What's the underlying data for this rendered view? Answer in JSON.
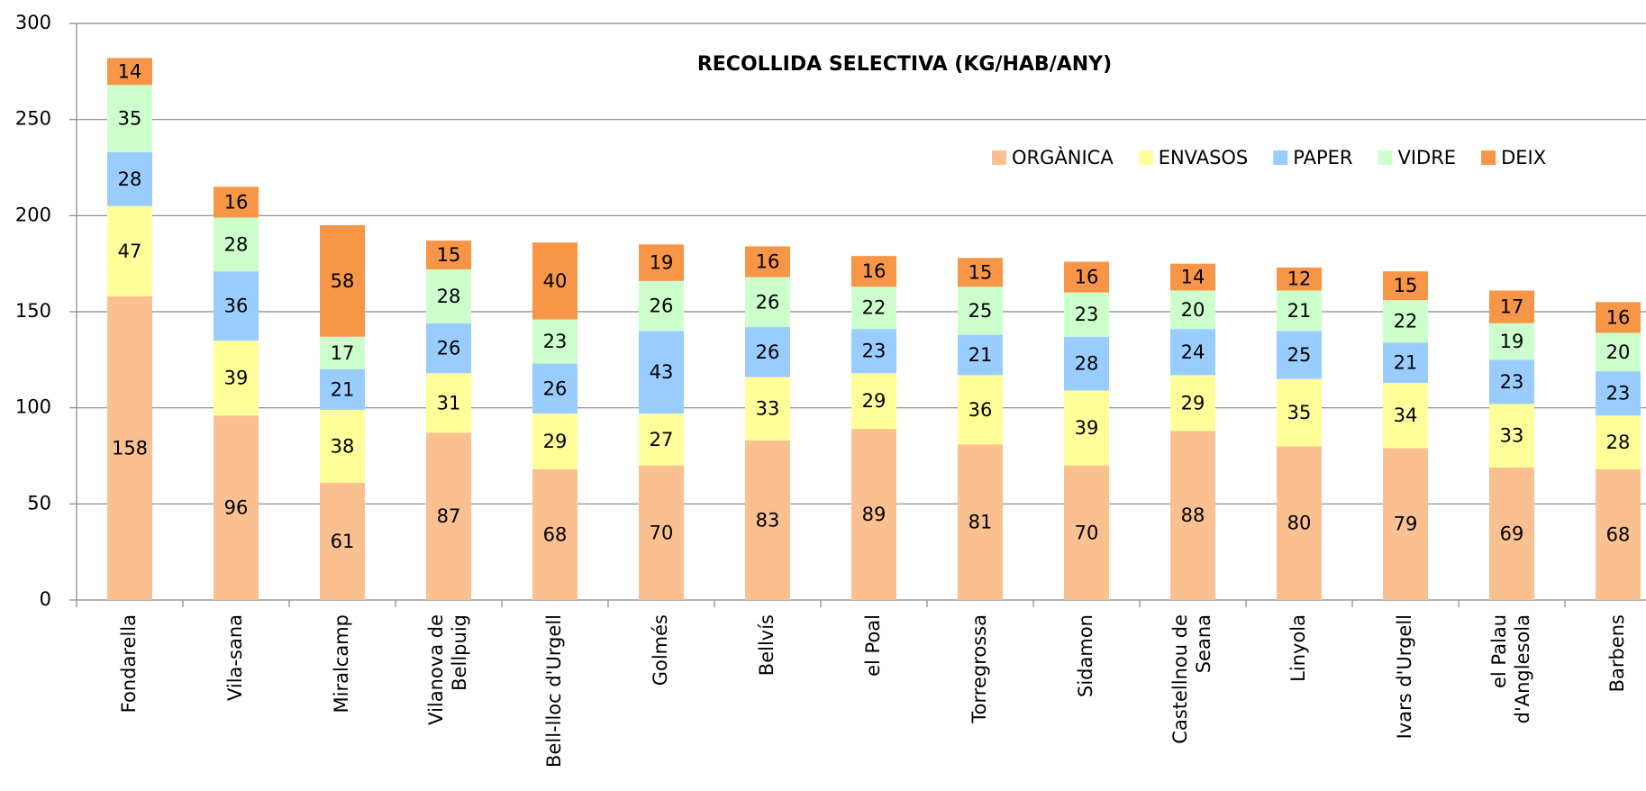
{
  "chart_data": {
    "type": "stacked_bar",
    "title": "RECOLLIDA SELECTIVA (KG/HAB/ANY)",
    "categories": [
      "Fondarella",
      "Vila-sana",
      "Miralcamp",
      "Vilanova de\nBellpuig",
      "Bell-lloc d'Urgell",
      "Golmés",
      "Bellvís",
      "el Poal",
      "Torregrossa",
      "Sidamon",
      "Castellnou de\nSeana",
      "Linyola",
      "Ivars d'Urgell",
      "el Palau\nd'Anglesola",
      "Barbens"
    ],
    "series": [
      {
        "name": "ORGÀNICA",
        "color": "#fac090",
        "values": [
          158,
          96,
          61,
          87,
          68,
          70,
          83,
          89,
          81,
          70,
          88,
          80,
          79,
          69,
          68
        ]
      },
      {
        "name": "ENVASOS",
        "color": "#ffff99",
        "values": [
          47,
          39,
          38,
          31,
          29,
          27,
          33,
          29,
          36,
          39,
          29,
          35,
          34,
          33,
          28
        ]
      },
      {
        "name": "PAPER",
        "color": "#99ccff",
        "values": [
          28,
          36,
          21,
          26,
          26,
          43,
          26,
          23,
          21,
          28,
          24,
          25,
          21,
          23,
          23
        ]
      },
      {
        "name": "VIDRE",
        "color": "#ccffcc",
        "values": [
          35,
          28,
          17,
          28,
          23,
          26,
          26,
          22,
          25,
          23,
          20,
          21,
          22,
          19,
          20
        ]
      },
      {
        "name": "DEIX",
        "color": "#f79646",
        "values": [
          14,
          16,
          58,
          15,
          40,
          19,
          16,
          16,
          15,
          16,
          14,
          12,
          15,
          17,
          16
        ]
      }
    ],
    "ylim": [
      0,
      300
    ],
    "yticks": [
      0,
      50,
      100,
      150,
      200,
      250,
      300
    ],
    "grid": true,
    "legend": "top-right"
  }
}
